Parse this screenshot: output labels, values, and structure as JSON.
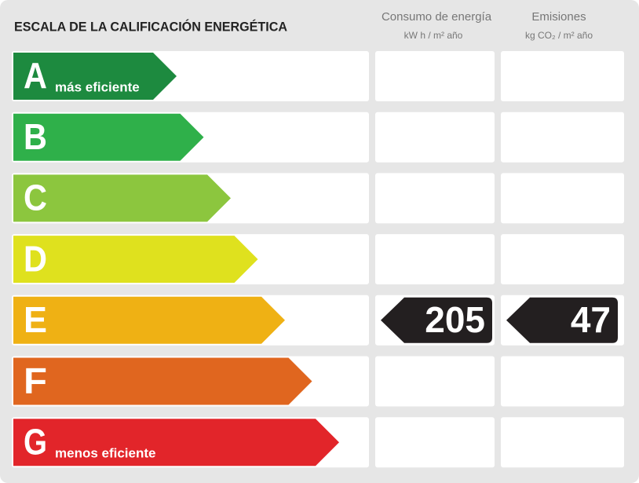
{
  "header": {
    "title": "ESCALA DE LA CALIFICACIÓN ENERGÉTICA",
    "consumption": {
      "title": "Consumo de energía",
      "unit": "kW h / m² año"
    },
    "emissions": {
      "title": "Emisiones",
      "unit": "kg CO₂ / m² año"
    }
  },
  "rows": [
    {
      "letter": "A",
      "label": "más eficiente",
      "color": "#1d8a3f"
    },
    {
      "letter": "B",
      "color": "#2fb04a"
    },
    {
      "letter": "C",
      "color": "#8cc63e"
    },
    {
      "letter": "D",
      "color": "#dfe11e"
    },
    {
      "letter": "E",
      "color": "#efb114",
      "consumption": 205,
      "emissions": 47
    },
    {
      "letter": "F",
      "color": "#e0661f"
    },
    {
      "letter": "G",
      "label": "menos eficiente",
      "color": "#e2252a"
    }
  ]
}
